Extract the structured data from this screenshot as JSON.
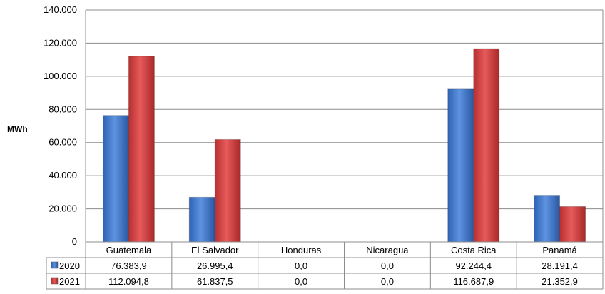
{
  "chart_data": {
    "type": "bar",
    "title": "",
    "xlabel": "",
    "ylabel": "MWh",
    "ylim": [
      0,
      140000
    ],
    "yticks": [
      {
        "value": 0,
        "label": "0"
      },
      {
        "value": 20000,
        "label": "20.000"
      },
      {
        "value": 40000,
        "label": "40.000"
      },
      {
        "value": 60000,
        "label": "60.000"
      },
      {
        "value": 80000,
        "label": "80.000"
      },
      {
        "value": 100000,
        "label": "100.000"
      },
      {
        "value": 120000,
        "label": "120.000"
      },
      {
        "value": 140000,
        "label": "140.000"
      }
    ],
    "categories": [
      "Guatemala",
      "El Salvador",
      "Honduras",
      "Nicaragua",
      "Costa Rica",
      "Panamá"
    ],
    "series": [
      {
        "name": "2020",
        "color": "#4a7fd0",
        "values": [
          76383.9,
          26995.4,
          0.0,
          0.0,
          92244.4,
          28191.4
        ],
        "labels": [
          "76.383,9",
          "26.995,4",
          "0,0",
          "0,0",
          "92.244,4",
          "28.191,4"
        ]
      },
      {
        "name": "2021",
        "color": "#d94545",
        "values": [
          112094.8,
          61837.5,
          0.0,
          0.0,
          116687.9,
          21352.9
        ],
        "labels": [
          "112.094,8",
          "61.837,5",
          "0,0",
          "0,0",
          "116.687,9",
          "21.352,9"
        ]
      }
    ],
    "grid": true,
    "legend": "data-table"
  }
}
